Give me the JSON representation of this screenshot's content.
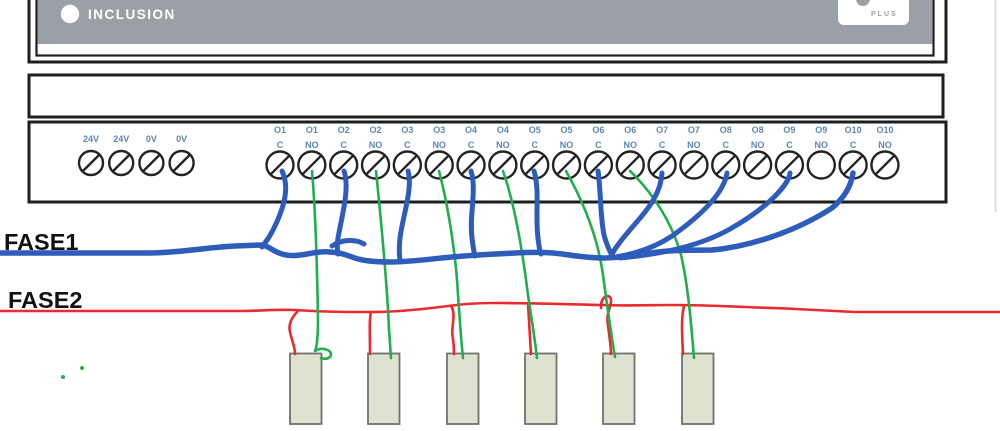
{
  "device": {
    "indicator_label": "INCLUSION",
    "logo_text": "PLUS",
    "power_terminals": [
      "24V",
      "24V",
      "0V",
      "0V"
    ],
    "output_terminals": [
      {
        "output": "O1",
        "mode": "C"
      },
      {
        "output": "O1",
        "mode": "NO"
      },
      {
        "output": "O2",
        "mode": "C"
      },
      {
        "output": "O2",
        "mode": "NO"
      },
      {
        "output": "O3",
        "mode": "C"
      },
      {
        "output": "O3",
        "mode": "NO"
      },
      {
        "output": "O4",
        "mode": "C"
      },
      {
        "output": "O4",
        "mode": "NO"
      },
      {
        "output": "O5",
        "mode": "C"
      },
      {
        "output": "O5",
        "mode": "NO"
      },
      {
        "output": "O6",
        "mode": "C"
      },
      {
        "output": "O6",
        "mode": "NO"
      },
      {
        "output": "O7",
        "mode": "C"
      },
      {
        "output": "O7",
        "mode": "NO"
      },
      {
        "output": "O8",
        "mode": "C"
      },
      {
        "output": "O8",
        "mode": "NO"
      },
      {
        "output": "O9",
        "mode": "C"
      },
      {
        "output": "O9",
        "mode": "NO"
      },
      {
        "output": "O10",
        "mode": "C"
      },
      {
        "output": "O10",
        "mode": "NO"
      }
    ]
  },
  "wiring": {
    "phase1_label": "FASE1",
    "phase2_label": "FASE2",
    "load_count": 6
  },
  "colors": {
    "phase1_wire": "#2d5cba",
    "phase2_wire": "#ea2a2e",
    "switched_wire": "#22ad4e",
    "device_panel": "#9aa0a5",
    "device_outline": "#1e1e1e",
    "terminal_label": "#5d86b8",
    "load_fill": "#dfe2d0",
    "load_border": "#6f736e",
    "label_text": "#111111",
    "logo_text": "#9aa0a5",
    "page_edge": "#dcdcdc"
  }
}
